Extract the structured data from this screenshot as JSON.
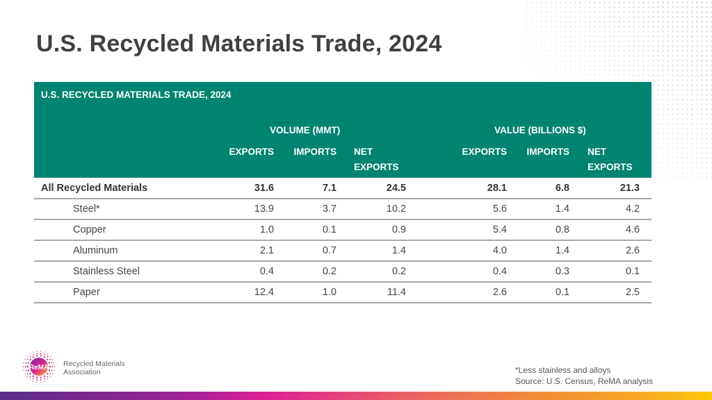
{
  "page": {
    "title": "U.S. Recycled Materials Trade, 2024"
  },
  "table": {
    "caption": "U.S. RECYCLED MATERIALS TRADE, 2024",
    "groups": [
      "VOLUME (MMT)",
      "VALUE (BILLIONS $)"
    ],
    "columns": [
      {
        "line1": "",
        "line2": "EXPORTS"
      },
      {
        "line1": "",
        "line2": "IMPORTS"
      },
      {
        "line1": "NET",
        "line2": "EXPORTS"
      },
      {
        "line1": "",
        "line2": "EXPORTS"
      },
      {
        "line1": "",
        "line2": "IMPORTS"
      },
      {
        "line1": "NET",
        "line2": "EXPORTS"
      }
    ],
    "header_color": "#008472",
    "rows": [
      {
        "name": "All Recycled Materials",
        "values": [
          "31.6",
          "7.1",
          "24.5",
          "28.1",
          "6.8",
          "21.3"
        ]
      },
      {
        "name": "Steel*",
        "values": [
          "13.9",
          "3.7",
          "10.2",
          "5.6",
          "1.4",
          "4.2"
        ]
      },
      {
        "name": "Copper",
        "values": [
          "1.0",
          "0.1",
          "0.9",
          "5.4",
          "0.8",
          "4.6"
        ]
      },
      {
        "name": "Aluminum",
        "values": [
          "2.1",
          "0.7",
          "1.4",
          "4.0",
          "1.4",
          "2.6"
        ]
      },
      {
        "name": "Stainless Steel",
        "values": [
          "0.4",
          "0.2",
          "0.2",
          "0.4",
          "0.3",
          "0.1"
        ]
      },
      {
        "name": "Paper",
        "values": [
          "12.4",
          "1.0",
          "11.4",
          "2.6",
          "0.1",
          "2.5"
        ]
      }
    ]
  },
  "logo": {
    "mark": "ReMA",
    "line1": "Recycled Materials",
    "line2": "Association"
  },
  "footnotes": {
    "note": "*Less stainless and alloys",
    "source": "Source: U.S. Census, ReMA analysis"
  }
}
